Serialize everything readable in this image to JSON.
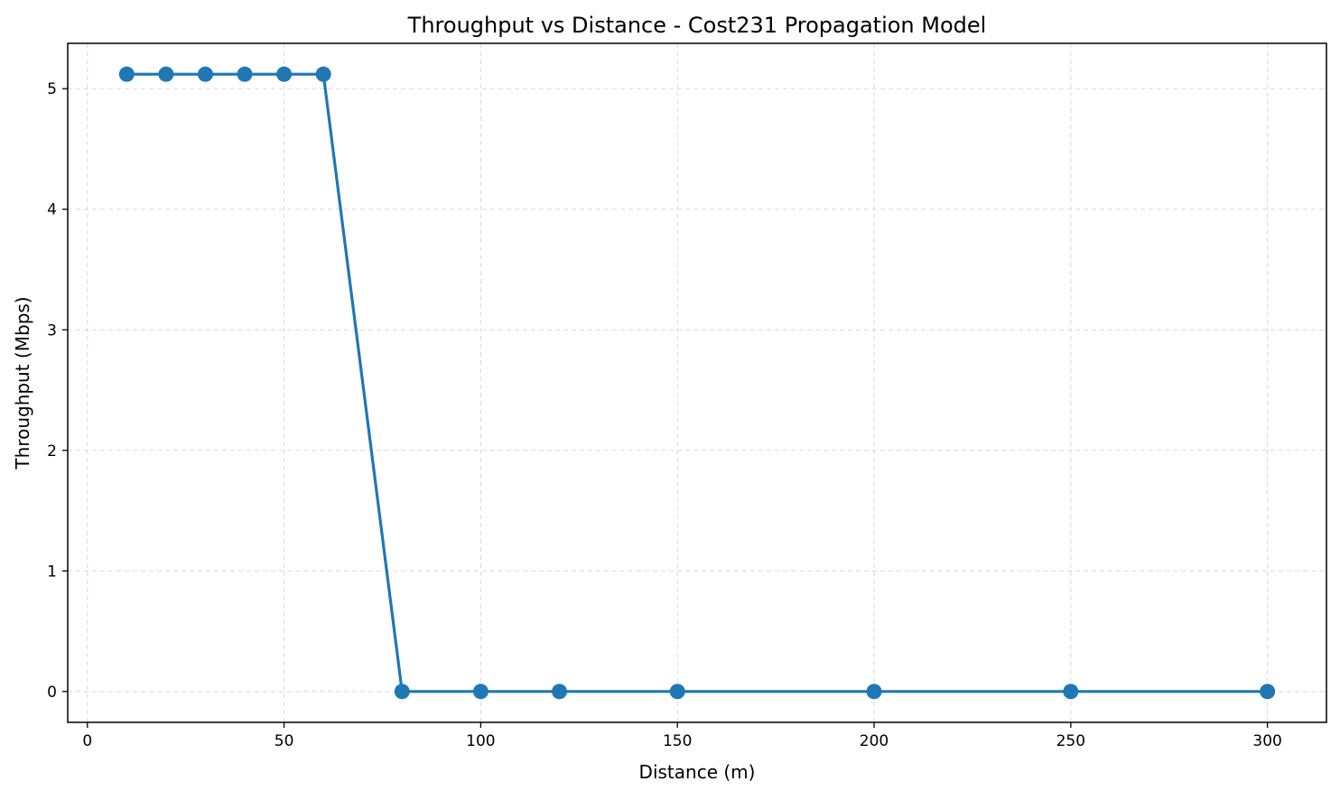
{
  "chart_data": {
    "type": "line",
    "title": "Throughput vs Distance - Cost231 Propagation Model",
    "xlabel": "Distance (m)",
    "ylabel": "Throughput (Mbps)",
    "xlim": [
      -5,
      315
    ],
    "ylim": [
      -0.256,
      5.376
    ],
    "xticks": [
      0,
      50,
      100,
      150,
      200,
      250,
      300
    ],
    "yticks": [
      0,
      1,
      2,
      3,
      4,
      5
    ],
    "grid": true,
    "marker": "circle",
    "colors": {
      "series": "#1f77b4",
      "grid": "#cccccc",
      "axes": "#000000"
    },
    "series": [
      {
        "x": [
          10,
          20,
          30,
          40,
          50,
          60,
          80,
          100,
          120,
          150,
          200,
          250,
          300
        ],
        "y": [
          5.12,
          5.12,
          5.12,
          5.12,
          5.12,
          5.12,
          0,
          0,
          0,
          0,
          0,
          0,
          0
        ]
      }
    ]
  }
}
